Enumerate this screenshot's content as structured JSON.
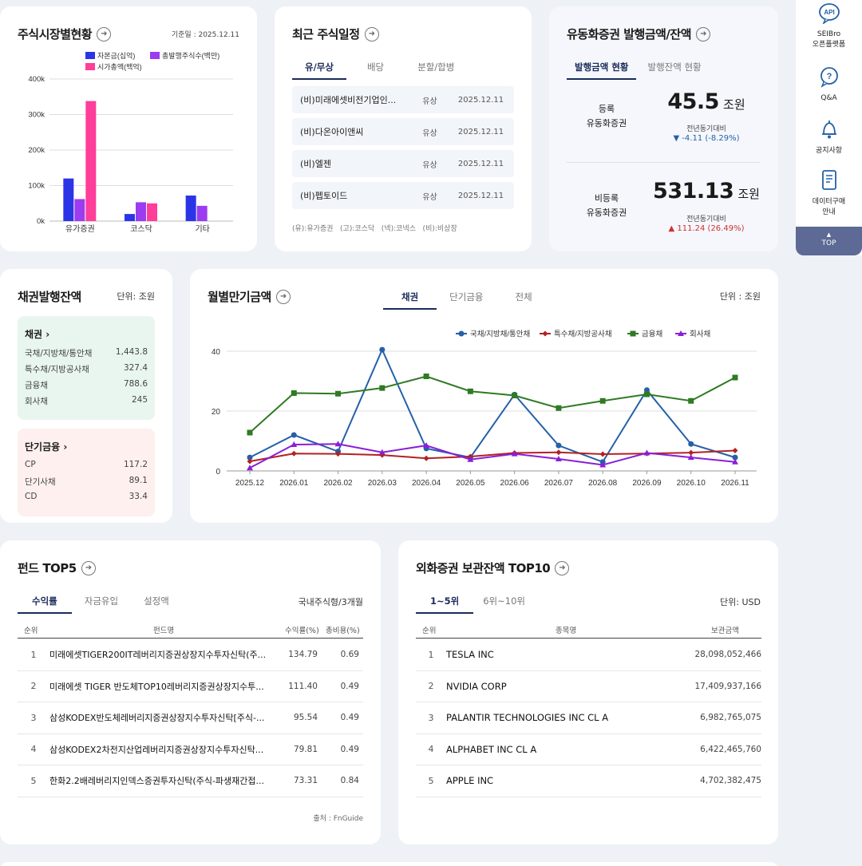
{
  "market": {
    "title": "주식시장별현황",
    "date": "기준일 : 2025.12.11",
    "legend": [
      "자본금(십억)",
      "총발행주식수(백만)",
      "시가총액(백억)"
    ],
    "legend_colors": [
      "#2b35e6",
      "#9b3cf0",
      "#ff3d9a"
    ]
  },
  "schedule": {
    "title": "최근 주식일정",
    "tabs": [
      "유/무상",
      "배당",
      "분할/합병"
    ],
    "rows": [
      {
        "name": "(비)미래에셋비전기업인...",
        "type": "유상",
        "date": "2025.12.11"
      },
      {
        "name": "(비)다온아이앤씨",
        "type": "유상",
        "date": "2025.12.11"
      },
      {
        "name": "(비)엘젠",
        "type": "유상",
        "date": "2025.12.11"
      },
      {
        "name": "(비)펩토이드",
        "type": "유상",
        "date": "2025.12.11"
      }
    ],
    "footnote": "(유):유가증권   (고):코스닥   (넥):코넥스   (비):비상장"
  },
  "floating": {
    "title": "유동화증권 발행금액/잔액",
    "tabs": [
      "발행금액 현황",
      "발행잔액 현황"
    ],
    "registered": {
      "label1": "등록",
      "label2": "유동화증권",
      "value": "45.5",
      "unit": "조원",
      "cmp_label": "전년동기대비",
      "cmp": "▼ -4.11 (-8.29%)"
    },
    "unregistered": {
      "label1": "비등록",
      "label2": "유동화증권",
      "value": "531.13",
      "unit": "조원",
      "cmp_label": "전년동기대비",
      "cmp": "▲ 111.24 (26.49%)"
    }
  },
  "bond": {
    "title": "채권발행잔액",
    "unit": "단위: 조원",
    "bonds": {
      "header": "채권",
      "rows": [
        {
          "label": "국채/지방채/통안채",
          "value": "1,443.8"
        },
        {
          "label": "특수채/지방공사채",
          "value": "327.4"
        },
        {
          "label": "금융채",
          "value": "788.6"
        },
        {
          "label": "회사채",
          "value": "245"
        }
      ]
    },
    "short": {
      "header": "단기금융",
      "rows": [
        {
          "label": "CP",
          "value": "117.2"
        },
        {
          "label": "단기사채",
          "value": "89.1"
        },
        {
          "label": "CD",
          "value": "33.4"
        }
      ]
    }
  },
  "monthly": {
    "title": "월별만기금액",
    "tabs": [
      "채권",
      "단기금융",
      "전체"
    ],
    "unit": "단위 : 조원"
  },
  "funds": {
    "title": "펀드 TOP5",
    "tabs": [
      "수익률",
      "자금유입",
      "설정액"
    ],
    "filter": "국내주식형/3개월",
    "headers": [
      "순위",
      "펀드명",
      "수익률(%)",
      "총비용(%)"
    ],
    "rows": [
      {
        "rank": "1",
        "name": "미래에셋TIGER200IT레버리지증권상장지수투자신탁(주...",
        "ret": "134.79",
        "cost": "0.69"
      },
      {
        "rank": "2",
        "name": "미래에셋 TIGER 반도체TOP10레버리지증권상장지수투...",
        "ret": "111.40",
        "cost": "0.49"
      },
      {
        "rank": "3",
        "name": "삼성KODEX반도체레버리지증권상장지수투자신탁[주식-...",
        "ret": "95.54",
        "cost": "0.49"
      },
      {
        "rank": "4",
        "name": "삼성KODEX2차전지산업레버리지증권상장지수투자신탁...",
        "ret": "79.81",
        "cost": "0.49"
      },
      {
        "rank": "5",
        "name": "한화2.2배레버리지인덱스증권투자신탁(주식-파생재간접...",
        "ret": "73.31",
        "cost": "0.84"
      }
    ],
    "source": "출처 : FnGuide"
  },
  "foreign": {
    "title": "외화증권 보관잔액 TOP10",
    "tabs": [
      "1~5위",
      "6위~10위"
    ],
    "unit": "단위: USD",
    "headers": [
      "순위",
      "종목명",
      "보관금액"
    ],
    "rows": [
      {
        "rank": "1",
        "name": "TESLA INC",
        "amount": "28,098,052,466"
      },
      {
        "rank": "2",
        "name": "NVIDIA CORP",
        "amount": "17,409,937,166"
      },
      {
        "rank": "3",
        "name": "PALANTIR TECHNOLOGIES INC CL A",
        "amount": "6,982,765,075"
      },
      {
        "rank": "4",
        "name": "ALPHABET INC CL A",
        "amount": "6,422,465,760"
      },
      {
        "rank": "5",
        "name": "APPLE INC",
        "amount": "4,702,382,475"
      }
    ]
  },
  "sidebar": {
    "items": [
      {
        "icon": "api-icon",
        "label1": "SEIBro",
        "label2": "오픈플랫폼"
      },
      {
        "icon": "qna-icon",
        "label1": "Q&A",
        "label2": ""
      },
      {
        "icon": "bell-icon",
        "label1": "공지사항",
        "label2": ""
      },
      {
        "icon": "book-icon",
        "label1": "데이터구매",
        "label2": "안내"
      }
    ],
    "top": "TOP",
    "api_badge": "API"
  },
  "chart_data": [
    {
      "type": "bar",
      "categories": [
        "유가증권",
        "코스닥",
        "기타"
      ],
      "series": [
        {
          "name": "자본금(십억)",
          "values": [
            120000,
            20000,
            72000
          ]
        },
        {
          "name": "총발행주식수(백만)",
          "values": [
            62000,
            53000,
            43000
          ]
        },
        {
          "name": "시가총액(백억)",
          "values": [
            338000,
            50000,
            0
          ]
        }
      ],
      "ylim": [
        0,
        400000
      ],
      "yticks": [
        "0k",
        "100k",
        "200k",
        "300k",
        "400k"
      ],
      "colors": [
        "#2b35e6",
        "#9b3cf0",
        "#ff3d9a"
      ]
    },
    {
      "type": "line",
      "categories": [
        "2025.12",
        "2026.01",
        "2026.02",
        "2026.03",
        "2026.04",
        "2026.05",
        "2026.06",
        "2026.07",
        "2026.08",
        "2026.09",
        "2026.10",
        "2026.11"
      ],
      "series": [
        {
          "name": "국채/지방채/통안채",
          "color": "#2461a8",
          "marker": "circle",
          "values": [
            4.5,
            12,
            6.5,
            40.5,
            7.5,
            4.5,
            25.5,
            8.5,
            3,
            27,
            9,
            4.5
          ]
        },
        {
          "name": "특수채/지방공사채",
          "color": "#b32121",
          "marker": "diamond",
          "values": [
            3.2,
            5.8,
            5.7,
            5.3,
            4.2,
            4.8,
            6.0,
            6.2,
            5.6,
            5.8,
            6.1,
            6.8
          ]
        },
        {
          "name": "금융채",
          "color": "#2f7a22",
          "marker": "square",
          "values": [
            12.8,
            26,
            25.8,
            27.7,
            31.6,
            26.6,
            25.2,
            21,
            23.4,
            25.6,
            23.4,
            31.2
          ]
        },
        {
          "name": "회사채",
          "color": "#8a1fd6",
          "marker": "triangle",
          "values": [
            1,
            8.8,
            9,
            6.2,
            8.5,
            3.8,
            5.7,
            4,
            2,
            6,
            4.5,
            3
          ]
        }
      ],
      "ylim": [
        0,
        40
      ],
      "yticks": [
        0,
        20,
        40
      ],
      "grid": true,
      "legend": "top-right"
    }
  ]
}
